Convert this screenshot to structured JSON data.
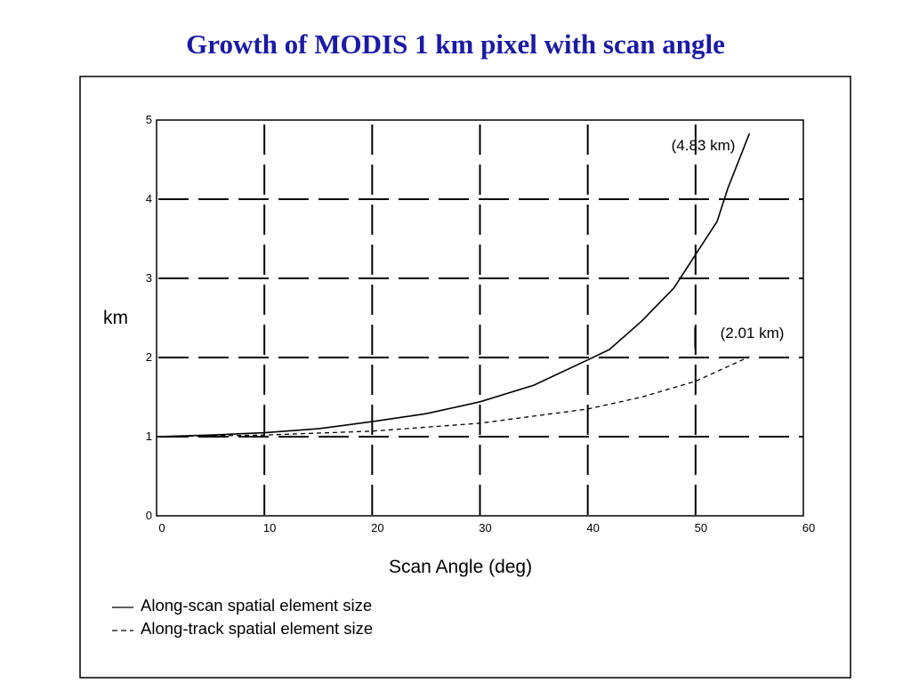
{
  "title": "Growth of MODIS 1 km pixel with scan angle",
  "chart_data": {
    "type": "line",
    "xlabel": "Scan Angle (deg)",
    "ylabel": "km",
    "xlim": [
      0,
      60
    ],
    "ylim": [
      0,
      5
    ],
    "x_ticks": [
      0,
      10,
      20,
      30,
      40,
      50,
      60
    ],
    "y_ticks": [
      0,
      1,
      2,
      3,
      4,
      5
    ],
    "grid": true,
    "legend_placement": "bottom-left, below plot",
    "series": [
      {
        "name": "Along-scan spatial element size",
        "line_style": "solid",
        "x": [
          0,
          5,
          10,
          15,
          20,
          25,
          30,
          35,
          40,
          42,
          45,
          48,
          50,
          52,
          53,
          55
        ],
        "y": [
          1.0,
          1.02,
          1.05,
          1.1,
          1.19,
          1.29,
          1.44,
          1.65,
          1.97,
          2.1,
          2.46,
          2.88,
          3.3,
          3.72,
          4.14,
          4.83
        ]
      },
      {
        "name": "Along-track spatial element size",
        "line_style": "dashed",
        "x": [
          0,
          10,
          20,
          30,
          40,
          45,
          50,
          55
        ],
        "y": [
          1.0,
          1.02,
          1.07,
          1.17,
          1.35,
          1.5,
          1.7,
          2.01
        ]
      }
    ],
    "annotations": [
      {
        "text": "(4.83 km)",
        "x": 55,
        "y": 4.83
      },
      {
        "text": "(2.01 km)",
        "x": 55,
        "y": 2.01
      }
    ]
  }
}
